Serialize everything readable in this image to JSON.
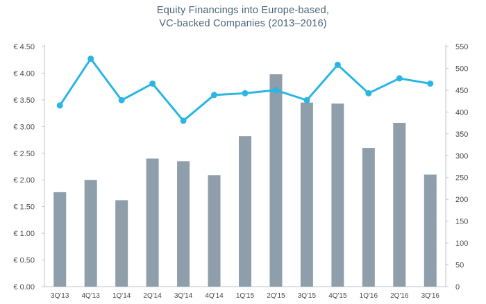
{
  "chart_data": {
    "type": "bar",
    "title_lines": [
      "Equity Financings into Europe-based,",
      "VC-backed Companies (2013–2016)"
    ],
    "categories": [
      "3Q'13",
      "4Q'13",
      "1Q'14",
      "2Q'14",
      "3Q'14",
      "4Q'14",
      "1Q'15",
      "2Q'15",
      "3Q'15",
      "4Q'15",
      "1Q'16",
      "2Q'16",
      "3Q'16"
    ],
    "series": [
      {
        "type": "bar",
        "axis": "left",
        "color": "#8e9fab",
        "values": [
          1.77,
          2.0,
          1.62,
          2.4,
          2.35,
          2.09,
          2.82,
          3.98,
          3.45,
          3.43,
          2.6,
          3.07,
          2.1
        ]
      },
      {
        "type": "line",
        "axis": "right",
        "color": "#29b6e3",
        "values": [
          415,
          522,
          427,
          465,
          380,
          439,
          443,
          450,
          427,
          508,
          443,
          477,
          465
        ]
      }
    ],
    "y_left": {
      "ylim": [
        0,
        4.5
      ],
      "ticks": [
        "€ 0.00",
        "€ 0.50",
        "€ 1.00",
        "€ 1.50",
        "€ 2.00",
        "€ 2.50",
        "€ 3.00",
        "€ 3.50",
        "€ 4.00",
        "€ 4.50"
      ]
    },
    "y_right": {
      "ylim": [
        0,
        550
      ],
      "ticks": [
        "0",
        "50",
        "100",
        "150",
        "200",
        "250",
        "300",
        "350",
        "400",
        "450",
        "500",
        "550"
      ]
    },
    "grid": false,
    "legend": "none"
  }
}
